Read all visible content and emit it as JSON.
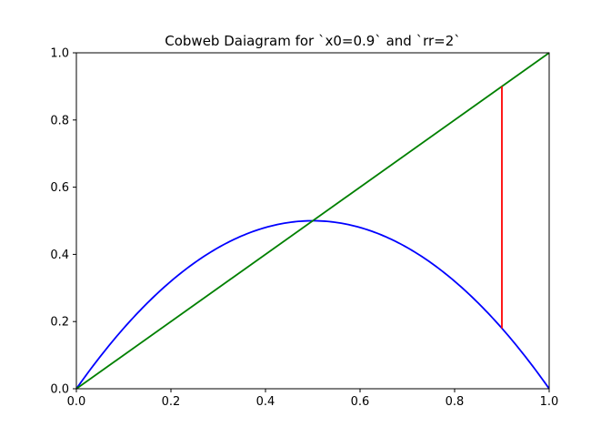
{
  "chart_data": {
    "type": "line",
    "title": "Cobweb Daiagram for `x0=0.9` and `rr=2`",
    "xlabel": "",
    "ylabel": "",
    "xlim": [
      0,
      1
    ],
    "ylim": [
      0,
      1
    ],
    "x_ticks": [
      "0.0",
      "0.2",
      "0.4",
      "0.6",
      "0.8",
      "1.0"
    ],
    "y_ticks": [
      "0.0",
      "0.2",
      "0.4",
      "0.6",
      "0.8",
      "1.0"
    ],
    "grid": false,
    "legend": "none",
    "series": [
      {
        "role": "logistic-map",
        "function": "2*x*(1-x)",
        "x_range": [
          0,
          1
        ],
        "color": "#0000ff"
      },
      {
        "role": "identity-line",
        "x": [
          0,
          1
        ],
        "y": [
          0,
          1
        ],
        "color": "#008000"
      },
      {
        "role": "cobweb-step",
        "x": [
          0.9,
          0.9
        ],
        "y": [
          0.9,
          0.18
        ],
        "color": "#ff0000"
      }
    ]
  }
}
